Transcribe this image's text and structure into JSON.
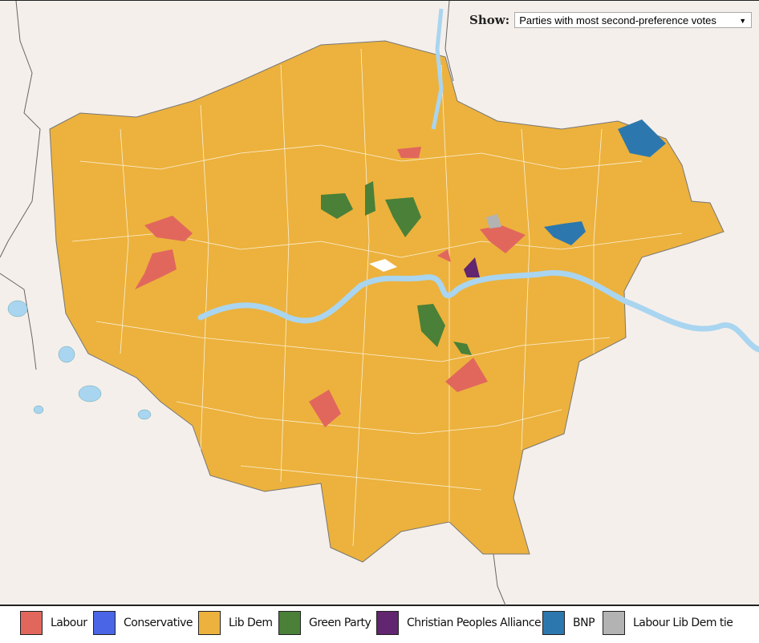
{
  "control": {
    "label": "Show:",
    "selected": "Parties with most second-preference votes"
  },
  "legend": [
    {
      "label": "Labour",
      "color": "#e1675d"
    },
    {
      "label": "Conservative",
      "color": "#4a66e6"
    },
    {
      "label": "Lib Dem",
      "color": "#ecb23d"
    },
    {
      "label": "Green Party",
      "color": "#4a8038"
    },
    {
      "label": "Christian Peoples Alliance",
      "color": "#62256f"
    },
    {
      "label": "BNP",
      "color": "#2c78ae"
    },
    {
      "label": "Labour Lib Dem tie",
      "color": "#b3b3b3"
    }
  ],
  "map": {
    "background": "#f5efeb",
    "water": "#a9d5f0",
    "base_party": "Lib Dem"
  }
}
